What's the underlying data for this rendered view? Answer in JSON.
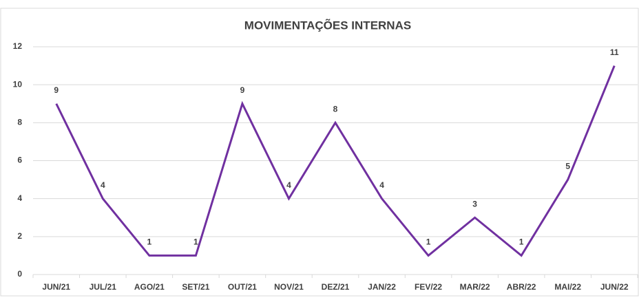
{
  "chart_data": {
    "type": "line",
    "title": "MOVIMENTAÇÕES INTERNAS",
    "categories": [
      "JUN/21",
      "JUL/21",
      "AGO/21",
      "SET/21",
      "OUT/21",
      "NOV/21",
      "DEZ/21",
      "JAN/22",
      "FEV/22",
      "MAR/22",
      "ABR/22",
      "MAI/22",
      "JUN/22"
    ],
    "series": [
      {
        "color": "#7030a0",
        "values": [
          9,
          4,
          1,
          1,
          9,
          4,
          8,
          4,
          1,
          3,
          1,
          5,
          11
        ]
      }
    ],
    "ylim": [
      0,
      12
    ],
    "yticks": [
      0,
      2,
      4,
      6,
      8,
      10,
      12
    ],
    "grid": true
  }
}
